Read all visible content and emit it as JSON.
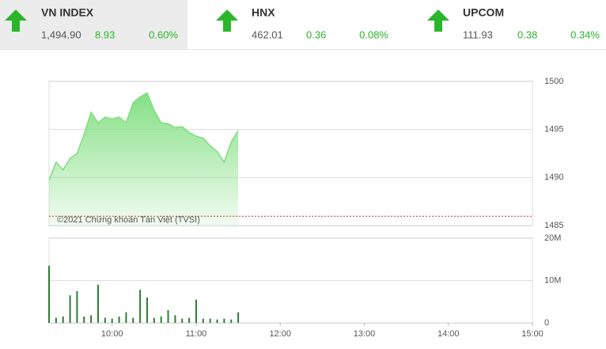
{
  "tabs": [
    {
      "name": "VN INDEX",
      "value": "1,494.90",
      "change": "8.93",
      "percent": "0.60%"
    },
    {
      "name": "HNX",
      "value": "462.01",
      "change": "0.36",
      "percent": "0.08%"
    },
    {
      "name": "UPCOM",
      "value": "111.93",
      "change": "0.38",
      "percent": "0.34%"
    }
  ],
  "chart_data": [
    {
      "type": "area",
      "annotation": "©2021 Chứng khoán Tân Việt (TVSI)",
      "color": "#7ede7e",
      "x": [
        "09:15",
        "09:20",
        "09:25",
        "09:30",
        "09:35",
        "09:40",
        "09:45",
        "09:50",
        "09:55",
        "10:00",
        "10:05",
        "10:10",
        "10:15",
        "10:20",
        "10:25",
        "10:30",
        "10:35",
        "10:40",
        "10:45",
        "10:50",
        "10:55",
        "11:00",
        "11:05",
        "11:10",
        "11:15",
        "11:20",
        "11:25",
        "11:30"
      ],
      "values": [
        1489.75,
        1491.6,
        1490.8,
        1492.0,
        1492.5,
        1494.5,
        1496.8,
        1495.7,
        1496.3,
        1496.1,
        1496.3,
        1495.7,
        1497.8,
        1498.4,
        1498.8,
        1497.0,
        1495.7,
        1495.6,
        1495.2,
        1495.3,
        1494.7,
        1494.3,
        1494.1,
        1493.3,
        1492.7,
        1491.6,
        1493.7,
        1494.9
      ],
      "reference_line": 1485.97,
      "reference_color": "#c0392b",
      "xlim": [
        "09:15",
        "15:00"
      ],
      "ylim": [
        1485,
        1500
      ],
      "yticks": [
        1485,
        1490,
        1495,
        1500
      ],
      "grid": true
    },
    {
      "type": "bar",
      "color": "#2e7d32",
      "x": [
        "09:15",
        "09:20",
        "09:25",
        "09:30",
        "09:35",
        "09:40",
        "09:45",
        "09:50",
        "09:55",
        "10:00",
        "10:05",
        "10:10",
        "10:15",
        "10:20",
        "10:25",
        "10:30",
        "10:35",
        "10:40",
        "10:45",
        "10:50",
        "10:55",
        "11:00",
        "11:05",
        "11:10",
        "11:15",
        "11:20",
        "11:25",
        "11:30"
      ],
      "values": [
        13.5,
        1.2,
        1.5,
        6.5,
        7.5,
        1.5,
        1.8,
        9.0,
        1.2,
        1.0,
        1.5,
        2.5,
        1.2,
        7.8,
        6.0,
        1.2,
        1.5,
        3.0,
        1.8,
        1.0,
        1.2,
        5.5,
        1.0,
        1.0,
        0.8,
        1.0,
        0.8,
        2.5
      ],
      "xlim": [
        "09:15",
        "15:00"
      ],
      "xticks": [
        "10:00",
        "11:00",
        "12:00",
        "13:00",
        "14:00",
        "15:00"
      ],
      "ylim": [
        0,
        20
      ],
      "yticks": [
        0,
        {
          "value": 10,
          "label": "10M"
        },
        {
          "value": 20,
          "label": "20M"
        }
      ],
      "grid": true
    }
  ]
}
